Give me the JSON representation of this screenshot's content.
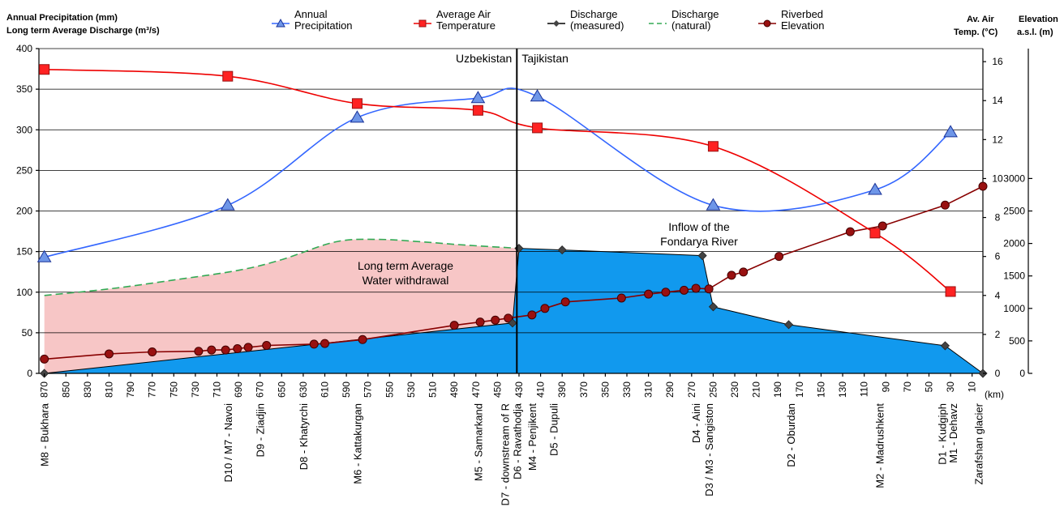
{
  "chart_data": {
    "type": "line",
    "header_left": [
      "Annual Precipitation (mm)",
      "Long term Average Discharge (m³/s)"
    ],
    "header_right_temp": [
      "Av. Air",
      "Temp. (°C)"
    ],
    "header_right_elev": [
      "Elevation",
      "a.s.l. (m)"
    ],
    "x_unit": "(km)",
    "x_range": [
      870,
      0
    ],
    "y_left": {
      "range": [
        0,
        400
      ],
      "ticks": [
        "0",
        "50",
        "100",
        "150",
        "200",
        "250",
        "300",
        "350",
        "400"
      ]
    },
    "y_temp": {
      "range": [
        0,
        16.67
      ],
      "ticks": [
        "0",
        "2",
        "4",
        "6",
        "8",
        "10",
        "12",
        "14",
        "16"
      ]
    },
    "y_elev": {
      "range": [
        0,
        5000
      ],
      "ticks": [
        "0",
        "500",
        "1000",
        "1500",
        "2000",
        "2500",
        "3000"
      ]
    },
    "x_ticks": [
      "870",
      "850",
      "830",
      "810",
      "790",
      "770",
      "750",
      "730",
      "710",
      "690",
      "670",
      "650",
      "630",
      "610",
      "590",
      "570",
      "550",
      "530",
      "510",
      "490",
      "470",
      "450",
      "430",
      "410",
      "390",
      "370",
      "350",
      "330",
      "310",
      "290",
      "270",
      "250",
      "230",
      "210",
      "190",
      "170",
      "150",
      "130",
      "110",
      "90",
      "70",
      "50",
      "30",
      "10"
    ],
    "legend": [
      {
        "label": [
          "Annual",
          "Precipitation"
        ],
        "color": "#3366ff",
        "marker": "triangle"
      },
      {
        "label": [
          "Average Air",
          "Temperature"
        ],
        "color": "#ee0000",
        "marker": "square"
      },
      {
        "label": [
          "Discharge",
          "(measured)"
        ],
        "color": "#000000",
        "marker": "diamond"
      },
      {
        "label": [
          "Discharge",
          "(natural)"
        ],
        "color": "#33aa55",
        "marker": "dash"
      },
      {
        "label": [
          "Riverbed",
          "Elevation"
        ],
        "color": "#880000",
        "marker": "circle"
      }
    ],
    "series": [
      {
        "name": "Annual Precipitation",
        "axis": "left",
        "x": [
          870,
          700,
          580,
          468,
          413,
          250,
          100,
          30
        ],
        "values": [
          143,
          207,
          315,
          339,
          341,
          207,
          226,
          297
        ]
      },
      {
        "name": "Average Air Temperature",
        "axis": "temp",
        "x": [
          870,
          700,
          580,
          468,
          413,
          250,
          100,
          30
        ],
        "values": [
          15.6,
          15.25,
          13.85,
          13.5,
          12.6,
          11.65,
          7.2,
          4.2
        ]
      },
      {
        "name": "Discharge (measured)",
        "axis": "left",
        "x": [
          870,
          436,
          430,
          390,
          260,
          250,
          180,
          35,
          0
        ],
        "values": [
          0,
          62,
          154,
          152,
          145,
          82,
          60,
          34,
          0
        ]
      },
      {
        "name": "Discharge (natural)",
        "axis": "left",
        "x": [
          870,
          810,
          750,
          690,
          650,
          600,
          560,
          520,
          480,
          430
        ],
        "values": [
          96,
          104,
          115,
          127,
          140,
          162,
          165,
          162,
          158,
          154
        ]
      },
      {
        "name": "Riverbed Elevation",
        "axis": "elev",
        "x": [
          870,
          810,
          770,
          727,
          715,
          702,
          691,
          681,
          664,
          620,
          610,
          575,
          490,
          466,
          452,
          440,
          418,
          406,
          387,
          335,
          310,
          294,
          277,
          266,
          254,
          233,
          222,
          189,
          123,
          93,
          35,
          0
        ],
        "values": [
          220,
          300,
          330,
          340,
          360,
          360,
          380,
          400,
          430,
          450,
          460,
          520,
          740,
          790,
          820,
          850,
          900,
          1000,
          1100,
          1160,
          1220,
          1250,
          1280,
          1310,
          1300,
          1510,
          1560,
          1800,
          2180,
          2270,
          2590,
          2880
        ]
      }
    ],
    "stations": [
      {
        "x": 870,
        "label": "M8 - Bukhara"
      },
      {
        "x": 700,
        "label": "D10 / M7 - Navoi"
      },
      {
        "x": 670,
        "label": "D9 - Ziadjin"
      },
      {
        "x": 630,
        "label": "D8 - Khatyrchi"
      },
      {
        "x": 580,
        "label": "M6 - Kattakurgan"
      },
      {
        "x": 468,
        "label": "M5 - Samarkand"
      },
      {
        "x": 443,
        "label": "D7 - downstream of R"
      },
      {
        "x": 432,
        "label": "D6 - Ravathodja"
      },
      {
        "x": 418,
        "label": "M4 - Penjikent"
      },
      {
        "x": 398,
        "label": "D5 - Dupuli"
      },
      {
        "x": 266,
        "label": "D4 - Aini"
      },
      {
        "x": 254,
        "label": "D3 / M3 - Sangiston"
      },
      {
        "x": 178,
        "label": "D2 - Oburdan"
      },
      {
        "x": 96,
        "label": "M2 - Madrushkent"
      },
      {
        "x": 38,
        "label": "D1 - Kudgiph"
      },
      {
        "x": 28,
        "label": "M1 - Dehavz"
      },
      {
        "x": 4,
        "label": "Zarafshan glacier"
      }
    ],
    "border": {
      "x": 432,
      "left_label": "Uzbekistan",
      "right_label": "Tajikistan"
    },
    "annotations": [
      {
        "lines": [
          "Long term Average",
          "Water withdrawal"
        ]
      },
      {
        "lines": [
          "Inflow of the",
          "Fondarya River"
        ]
      }
    ]
  }
}
